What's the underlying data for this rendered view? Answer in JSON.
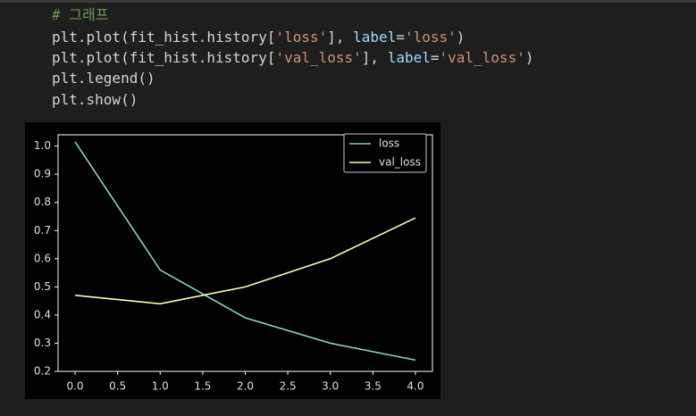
{
  "code": {
    "lines": [
      [
        {
          "text": "# 그래프",
          "color": "#6a9955"
        }
      ],
      [
        {
          "text": "plt.plot(fit_hist.history[",
          "color": "#d4d4d4"
        },
        {
          "text": "'loss'",
          "color": "#ce9178"
        },
        {
          "text": "], ",
          "color": "#d4d4d4"
        },
        {
          "text": "label",
          "color": "#9cdcfe"
        },
        {
          "text": "=",
          "color": "#d4d4d4"
        },
        {
          "text": "'loss'",
          "color": "#ce9178"
        },
        {
          "text": ")",
          "color": "#d4d4d4"
        }
      ],
      [
        {
          "text": "plt.plot(fit_hist.history[",
          "color": "#d4d4d4"
        },
        {
          "text": "'val_loss'",
          "color": "#ce9178"
        },
        {
          "text": "], ",
          "color": "#d4d4d4"
        },
        {
          "text": "label",
          "color": "#9cdcfe"
        },
        {
          "text": "=",
          "color": "#d4d4d4"
        },
        {
          "text": "'val_loss'",
          "color": "#ce9178"
        },
        {
          "text": ")",
          "color": "#d4d4d4"
        }
      ],
      [
        {
          "text": "plt.legend()",
          "color": "#d4d4d4"
        }
      ],
      [
        {
          "text": "plt.show()",
          "color": "#d4d4d4"
        }
      ]
    ]
  },
  "chart_data": {
    "type": "line",
    "x": [
      0,
      1,
      2,
      3,
      4
    ],
    "series": [
      {
        "name": "loss",
        "color": "#8dd3c7",
        "values": [
          1.015,
          0.56,
          0.39,
          0.3,
          0.24
        ]
      },
      {
        "name": "val_loss",
        "color": "#feffb3",
        "values": [
          0.47,
          0.44,
          0.5,
          0.6,
          0.745
        ]
      }
    ],
    "xlim": [
      -0.2,
      4.2
    ],
    "xticks": [
      {
        "value": 0,
        "label": "0.0"
      },
      0.5,
      {
        "value": 1,
        "label": "1.0"
      },
      1.5,
      {
        "value": 2,
        "label": "2.0"
      },
      2.5,
      {
        "value": 3,
        "label": "3.0"
      },
      3.5,
      {
        "value": 4,
        "label": "4.0"
      }
    ],
    "ylim": [
      0.2,
      1.04
    ],
    "yticks": [
      0.2,
      0.3,
      0.4,
      0.5,
      0.6,
      0.7,
      0.8,
      0.9,
      {
        "value": 1,
        "label": "1.0"
      }
    ],
    "legend": "upper right"
  }
}
